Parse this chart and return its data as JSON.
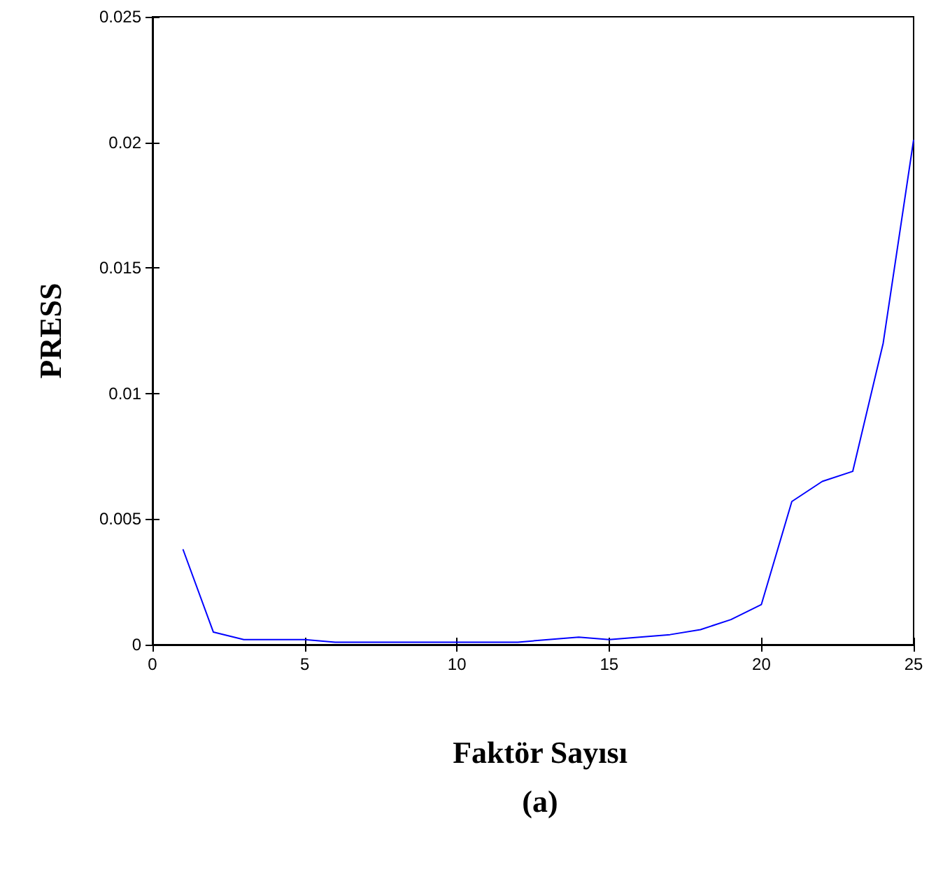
{
  "chart_data": {
    "type": "line",
    "xlabel": "Faktör Sayısı",
    "ylabel": "PRESS",
    "annotations": [
      "(a)"
    ],
    "x": [
      1,
      2,
      3,
      4,
      5,
      6,
      7,
      8,
      9,
      10,
      11,
      12,
      13,
      14,
      15,
      16,
      17,
      18,
      19,
      20,
      21,
      22,
      23,
      24,
      25
    ],
    "series": [
      {
        "color": "#0000ff",
        "values": [
          0.0038,
          0.0005,
          0.0002,
          0.0002,
          0.0002,
          0.0001,
          0.0001,
          0.0001,
          0.0001,
          0.0001,
          0.0001,
          0.0001,
          0.0002,
          0.0003,
          0.0002,
          0.0003,
          0.0004,
          0.0006,
          0.001,
          0.0016,
          0.0057,
          0.0065,
          0.0069,
          0.012,
          0.0201
        ]
      }
    ],
    "xlim": [
      0,
      25
    ],
    "xticks": [
      0,
      5,
      10,
      15,
      20,
      25
    ],
    "ylim": [
      0,
      0.025
    ],
    "yticks": [
      0,
      0.005,
      0.01,
      0.015,
      0.02,
      0.025
    ],
    "grid": false,
    "marker": "none",
    "line_style": "solid"
  }
}
